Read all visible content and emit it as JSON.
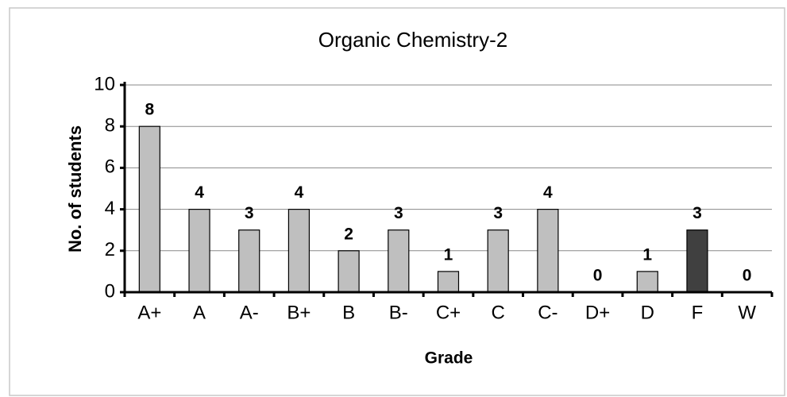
{
  "chart_data": {
    "type": "bar",
    "title": "Organic Chemistry-2",
    "x_label": "Grade",
    "y_label": "No. of students",
    "categories": [
      "A+",
      "A",
      "A-",
      "B+",
      "B",
      "B-",
      "C+",
      "C",
      "C-",
      "D+",
      "D",
      "F",
      "W"
    ],
    "values": [
      8,
      4,
      3,
      4,
      2,
      3,
      1,
      3,
      4,
      0,
      1,
      3,
      0
    ],
    "colors": [
      "#bfbfbf",
      "#bfbfbf",
      "#bfbfbf",
      "#bfbfbf",
      "#bfbfbf",
      "#bfbfbf",
      "#bfbfbf",
      "#bfbfbf",
      "#bfbfbf",
      "#bfbfbf",
      "#bfbfbf",
      "#404040",
      "#bfbfbf"
    ],
    "ylim": [
      0,
      10
    ],
    "yticks": [
      0,
      2,
      4,
      6,
      8,
      10
    ],
    "grid": true
  }
}
